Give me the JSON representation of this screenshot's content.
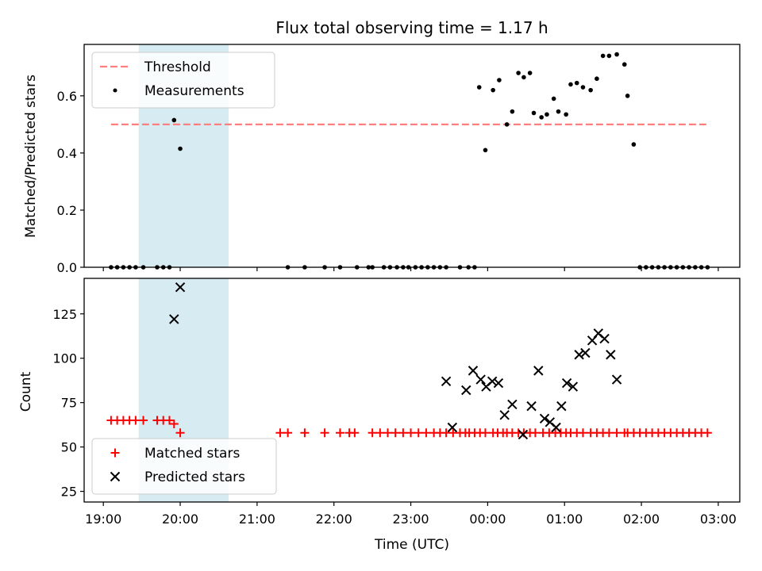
{
  "title": "Flux total observing time = 1.17 h",
  "chart_data": [
    {
      "type": "scatter",
      "ylabel": "Matched/Predicted stars",
      "xlabel": "",
      "x_unit": "hours since 19:00 UTC",
      "xlim": [
        -0.25,
        8.28
      ],
      "ylim": [
        0,
        0.78
      ],
      "yticks": [
        0.0,
        0.2,
        0.4,
        0.6
      ],
      "ytick_labels": [
        "0.0",
        "0.2",
        "0.4",
        "0.6"
      ],
      "legend_position": "top-left",
      "highlight_band": [
        0.46,
        1.63
      ],
      "series": [
        {
          "name": "Threshold",
          "style": "dashed-line",
          "color": "#ff7f7f",
          "x": [
            0.1,
            7.88
          ],
          "y": [
            0.5,
            0.5
          ]
        },
        {
          "name": "Measurements",
          "style": "dot",
          "color": "#000000",
          "x": [
            0.1,
            0.18,
            0.26,
            0.34,
            0.42,
            0.52,
            0.7,
            0.78,
            0.86,
            0.92,
            1.0,
            2.4,
            2.62,
            2.88,
            3.08,
            3.3,
            3.45,
            3.5,
            3.65,
            3.73,
            3.82,
            3.9,
            3.97,
            4.06,
            4.14,
            4.22,
            4.3,
            4.38,
            4.46,
            4.64,
            4.75,
            4.83,
            4.89,
            4.97,
            5.07,
            5.15,
            5.25,
            5.32,
            5.4,
            5.47,
            5.55,
            5.6,
            5.7,
            5.77,
            5.86,
            5.92,
            6.02,
            6.08,
            6.16,
            6.24,
            6.34,
            6.42,
            6.5,
            6.58,
            6.68,
            6.78,
            6.82,
            6.9,
            6.98,
            7.06,
            7.14,
            7.22,
            7.3,
            7.38,
            7.46,
            7.54,
            7.62,
            7.7,
            7.78,
            7.86
          ],
          "y": [
            0,
            0,
            0,
            0,
            0,
            0,
            0,
            0,
            0,
            0.515,
            0.415,
            0,
            0,
            0,
            0,
            0,
            0,
            0,
            0,
            0,
            0,
            0,
            0,
            0,
            0,
            0,
            0,
            0,
            0,
            0,
            0,
            0,
            0.63,
            0.41,
            0.62,
            0.655,
            0.5,
            0.545,
            0.68,
            0.665,
            0.68,
            0.54,
            0.525,
            0.535,
            0.59,
            0.545,
            0.535,
            0.64,
            0.645,
            0.63,
            0.62,
            0.66,
            0.74,
            0.74,
            0.745,
            0.71,
            0.6,
            0.43,
            0,
            0,
            0,
            0,
            0,
            0,
            0,
            0,
            0,
            0,
            0,
            0
          ]
        }
      ]
    },
    {
      "type": "scatter",
      "ylabel": "Count",
      "xlabel": "Time (UTC)",
      "x_unit": "hours since 19:00 UTC",
      "xlim": [
        -0.25,
        8.28
      ],
      "ylim": [
        19,
        145
      ],
      "yticks": [
        25,
        50,
        75,
        100,
        125
      ],
      "ytick_labels": [
        "25",
        "50",
        "75",
        "100",
        "125"
      ],
      "xticks": [
        0,
        1,
        2,
        3,
        4,
        5,
        6,
        7,
        8
      ],
      "xtick_labels": [
        "19:00",
        "20:00",
        "21:00",
        "22:00",
        "23:00",
        "00:00",
        "01:00",
        "02:00",
        "03:00"
      ],
      "legend_position": "bottom-left",
      "highlight_band": [
        0.46,
        1.63
      ],
      "series": [
        {
          "name": "Matched stars",
          "style": "plus",
          "color": "#ff0000",
          "x": [
            0.1,
            0.18,
            0.26,
            0.34,
            0.42,
            0.52,
            0.7,
            0.78,
            0.86,
            0.92,
            1.0,
            2.3,
            2.4,
            2.62,
            2.88,
            3.08,
            3.2,
            3.27,
            3.5,
            3.6,
            3.7,
            3.8,
            3.9,
            4.0,
            4.1,
            4.2,
            4.3,
            4.38,
            4.46,
            4.55,
            4.64,
            4.71,
            4.76,
            4.83,
            4.9,
            4.97,
            5.07,
            5.13,
            5.2,
            5.25,
            5.32,
            5.4,
            5.47,
            5.55,
            5.62,
            5.72,
            5.8,
            5.88,
            5.95,
            6.02,
            6.08,
            6.16,
            6.24,
            6.34,
            6.42,
            6.5,
            6.58,
            6.68,
            6.78,
            6.82,
            6.9,
            6.98,
            7.06,
            7.14,
            7.22,
            7.3,
            7.38,
            7.46,
            7.54,
            7.62,
            7.7,
            7.78,
            7.86
          ],
          "y": [
            65,
            65,
            65,
            65,
            65,
            65,
            65,
            65,
            65,
            63,
            58,
            58,
            58,
            58,
            58,
            58,
            58,
            58,
            58,
            58,
            58,
            58,
            58,
            58,
            58,
            58,
            58,
            58,
            58,
            58,
            58,
            58,
            58,
            58,
            58,
            58,
            58,
            58,
            58,
            58,
            58,
            58,
            58,
            58,
            58,
            58,
            58,
            58,
            58,
            58,
            58,
            58,
            58,
            58,
            58,
            58,
            58,
            58,
            58,
            58,
            58,
            58,
            58,
            58,
            58,
            58,
            58,
            58,
            58,
            58,
            58,
            58,
            58
          ]
        },
        {
          "name": "Predicted stars",
          "style": "x",
          "color": "#000000",
          "x": [
            0.92,
            1.0,
            4.46,
            4.54,
            4.72,
            4.81,
            4.91,
            4.98,
            5.06,
            5.14,
            5.22,
            5.32,
            5.46,
            5.57,
            5.66,
            5.74,
            5.81,
            5.89,
            5.96,
            6.03,
            6.11,
            6.19,
            6.27,
            6.36,
            6.44,
            6.52,
            6.6,
            6.68
          ],
          "y": [
            122,
            140,
            87,
            61,
            82,
            93,
            88,
            84,
            87,
            86,
            68,
            74,
            57,
            73,
            93,
            66,
            64,
            61,
            73,
            86,
            84,
            102,
            103,
            110,
            114,
            111,
            102,
            88
          ]
        }
      ]
    }
  ]
}
